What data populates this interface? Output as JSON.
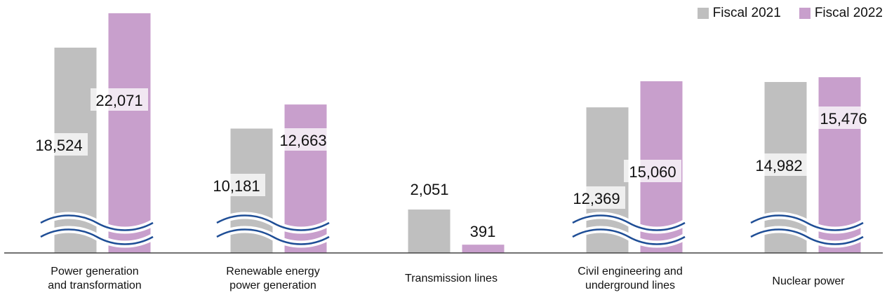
{
  "colors": {
    "fiscal2021": "#bfbfbf",
    "fiscal2022": "#c89fcc",
    "break_wave": "#1f4e96",
    "axis": "#444444"
  },
  "legend": {
    "fiscal2021": "Fiscal 2021",
    "fiscal2022": "Fiscal 2022"
  },
  "chart_data": {
    "type": "bar",
    "categories": [
      [
        "Power generation",
        "and transformation"
      ],
      [
        "Renewable energy",
        "power generation"
      ],
      [
        "Transmission lines"
      ],
      [
        "Civil engineering and",
        "underground lines"
      ],
      [
        "Nuclear power"
      ]
    ],
    "series": [
      {
        "name": "Fiscal 2021",
        "values": [
          18524,
          10181,
          2051,
          12369,
          14982
        ]
      },
      {
        "name": "Fiscal 2022",
        "values": [
          22071,
          12663,
          391,
          15060,
          15476
        ]
      }
    ],
    "value_labels": [
      [
        "18,524",
        "10,181",
        "2,051",
        "12,369",
        "14,982"
      ],
      [
        "22,071",
        "12,663",
        "391",
        "15,060",
        "15,476"
      ]
    ],
    "broken_axis": true,
    "axis_break_categories": [
      0,
      1,
      3,
      4
    ]
  }
}
